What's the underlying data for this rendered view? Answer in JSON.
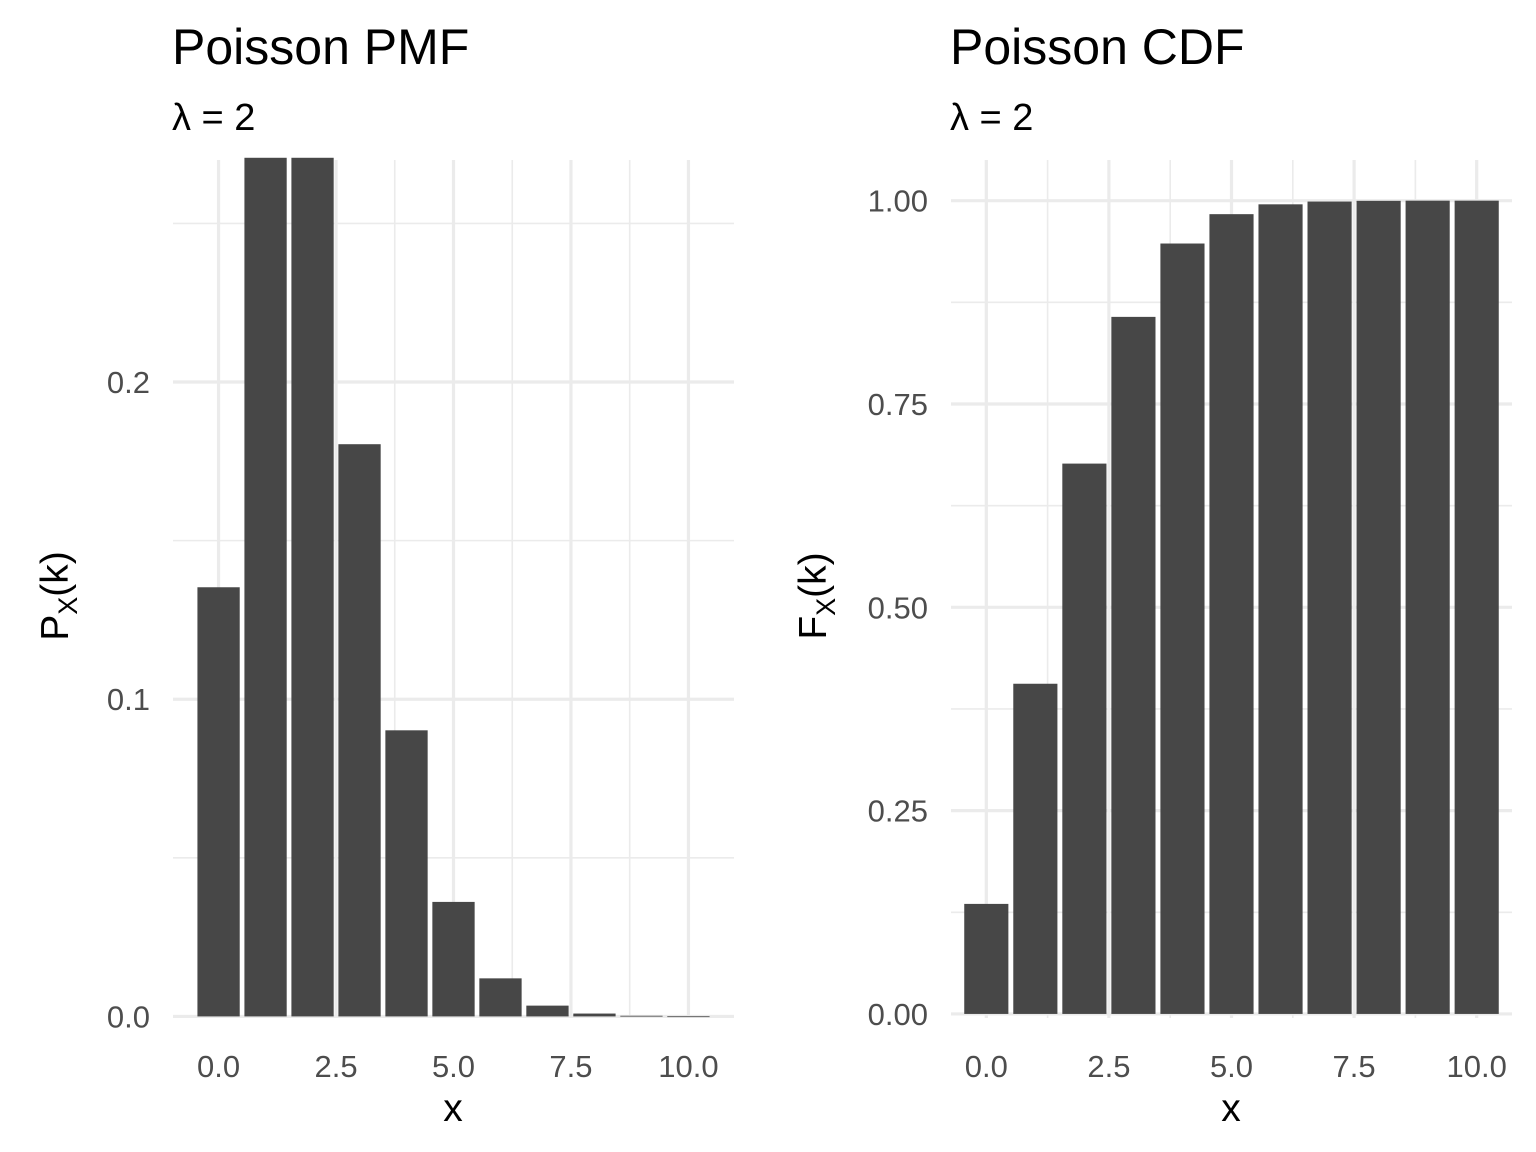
{
  "chart_data": [
    {
      "type": "bar",
      "title": "Poisson PMF",
      "subtitle_symbol": "λ",
      "subtitle_rest": " = 2",
      "xlabel": "x",
      "ylabel_main": "P",
      "ylabel_sub": "X",
      "ylabel_rest": "(k)",
      "x": [
        0,
        1,
        2,
        3,
        4,
        5,
        6,
        7,
        8,
        9,
        10
      ],
      "values": [
        0.1353,
        0.2707,
        0.2707,
        0.1804,
        0.0902,
        0.0361,
        0.012,
        0.0034,
        0.0009,
        0.0002,
        4e-05
      ],
      "xlim": [
        -0.97,
        10.97
      ],
      "ylim": [
        -0.0005,
        0.27
      ],
      "xticks": [
        0,
        2.5,
        5,
        7.5,
        10
      ],
      "xtick_labels": [
        "0.0",
        "2.5",
        "5.0",
        "7.5",
        "10.0"
      ],
      "yticks": [
        0,
        0.1,
        0.2
      ],
      "ytick_labels": [
        "0.0",
        "0.1",
        "0.2"
      ],
      "grid": true
    },
    {
      "type": "bar",
      "title": "Poisson CDF",
      "subtitle_symbol": "λ",
      "subtitle_rest": " = 2",
      "xlabel": "x",
      "ylabel_main": "F",
      "ylabel_sub": "X",
      "ylabel_rest": "(k)",
      "x": [
        0,
        1,
        2,
        3,
        4,
        5,
        6,
        7,
        8,
        9,
        10
      ],
      "values": [
        0.1353,
        0.406,
        0.6767,
        0.8571,
        0.9473,
        0.9834,
        0.9955,
        0.9989,
        0.9998,
        1.0,
        1.0
      ],
      "xlim": [
        -0.72,
        10.72
      ],
      "ylim": [
        -0.005,
        1.05
      ],
      "xticks": [
        0,
        2.5,
        5,
        7.5,
        10
      ],
      "xtick_labels": [
        "0.0",
        "2.5",
        "5.0",
        "7.5",
        "10.0"
      ],
      "yticks": [
        0,
        0.25,
        0.5,
        0.75,
        1.0
      ],
      "ytick_labels": [
        "0.00",
        "0.25",
        "0.50",
        "0.75",
        "1.00"
      ],
      "grid": true
    }
  ]
}
